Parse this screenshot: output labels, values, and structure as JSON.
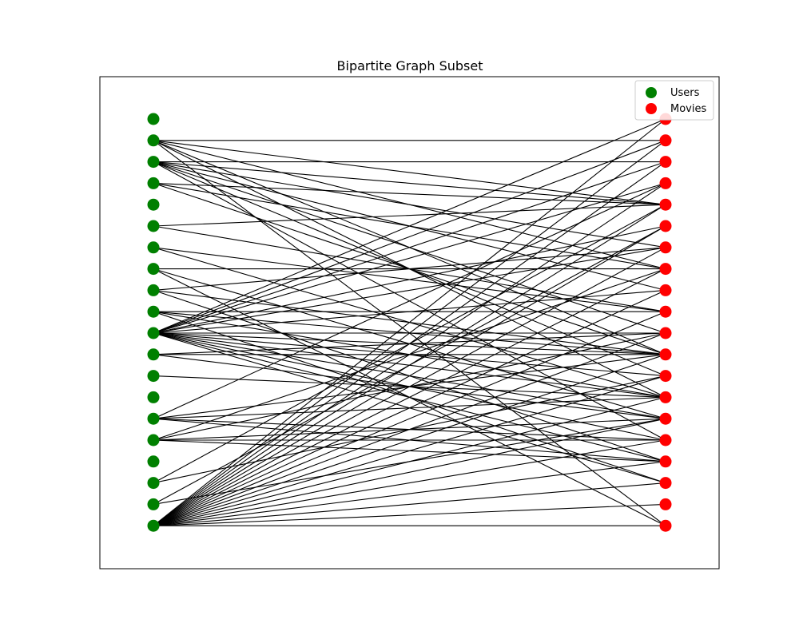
{
  "title": "Bipartite Graph Subset",
  "colors": {
    "users": "#008000",
    "movies": "#ff0000",
    "edge": "#000000"
  },
  "legend": {
    "placement": "top-right",
    "users_label": "Users",
    "movies_label": "Movies"
  },
  "graph": {
    "user_count": 20,
    "movie_count": 20,
    "edges": [
      [
        1,
        1
      ],
      [
        1,
        4
      ],
      [
        1,
        7
      ],
      [
        1,
        11
      ],
      [
        1,
        13
      ],
      [
        1,
        19
      ],
      [
        2,
        2
      ],
      [
        2,
        4
      ],
      [
        2,
        6
      ],
      [
        2,
        8
      ],
      [
        2,
        10
      ],
      [
        2,
        12
      ],
      [
        2,
        15
      ],
      [
        3,
        4
      ],
      [
        3,
        7
      ],
      [
        3,
        11
      ],
      [
        5,
        4
      ],
      [
        5,
        9
      ],
      [
        6,
        9
      ],
      [
        6,
        13
      ],
      [
        7,
        7
      ],
      [
        7,
        14
      ],
      [
        7,
        19
      ],
      [
        8,
        6
      ],
      [
        8,
        11
      ],
      [
        8,
        16
      ],
      [
        9,
        9
      ],
      [
        9,
        11
      ],
      [
        9,
        13
      ],
      [
        9,
        17
      ],
      [
        10,
        0
      ],
      [
        10,
        1
      ],
      [
        10,
        2
      ],
      [
        10,
        3
      ],
      [
        10,
        5
      ],
      [
        10,
        6
      ],
      [
        10,
        8
      ],
      [
        10,
        10
      ],
      [
        10,
        11
      ],
      [
        10,
        12
      ],
      [
        10,
        13
      ],
      [
        10,
        14
      ],
      [
        10,
        15
      ],
      [
        10,
        16
      ],
      [
        10,
        17
      ],
      [
        11,
        10
      ],
      [
        11,
        11
      ],
      [
        11,
        14
      ],
      [
        12,
        13
      ],
      [
        14,
        3
      ],
      [
        14,
        11
      ],
      [
        14,
        13
      ],
      [
        14,
        15
      ],
      [
        14,
        16
      ],
      [
        15,
        7
      ],
      [
        15,
        10
      ],
      [
        15,
        14
      ],
      [
        15,
        15
      ],
      [
        15,
        16
      ],
      [
        17,
        4
      ],
      [
        17,
        12
      ],
      [
        18,
        5
      ],
      [
        18,
        14
      ],
      [
        19,
        0
      ],
      [
        19,
        1
      ],
      [
        19,
        2
      ],
      [
        19,
        3
      ],
      [
        19,
        4
      ],
      [
        19,
        5
      ],
      [
        19,
        6
      ],
      [
        19,
        7
      ],
      [
        19,
        8
      ],
      [
        19,
        9
      ],
      [
        19,
        10
      ],
      [
        19,
        11
      ],
      [
        19,
        12
      ],
      [
        19,
        13
      ],
      [
        19,
        14
      ],
      [
        19,
        15
      ],
      [
        19,
        16
      ],
      [
        19,
        17
      ],
      [
        19,
        18
      ],
      [
        19,
        19
      ]
    ]
  }
}
